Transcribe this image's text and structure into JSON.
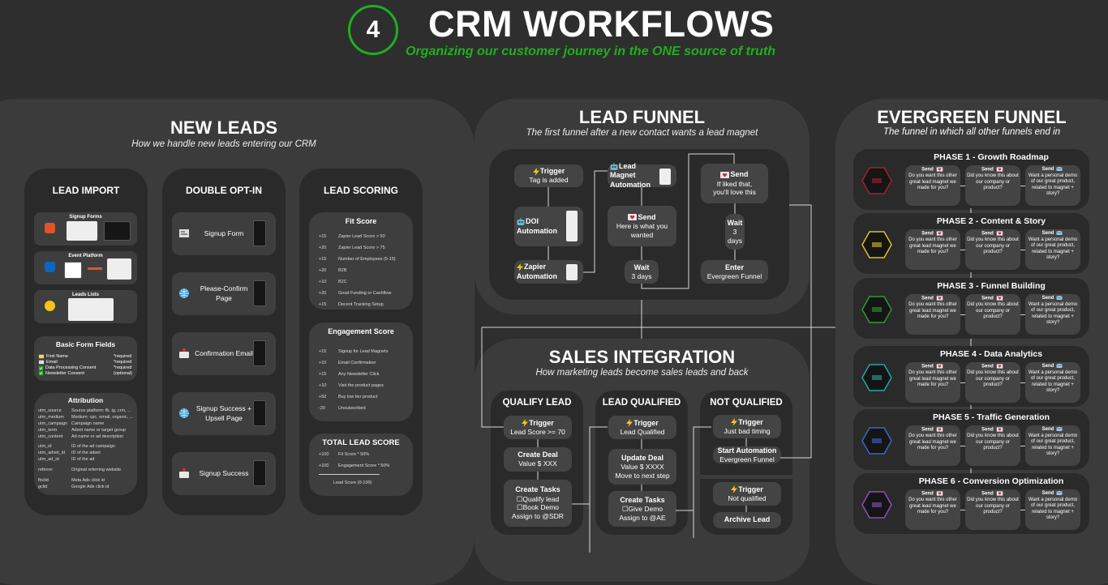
{
  "header": {
    "number": "4",
    "title": "CRM WORKFLOWS",
    "subtitle": "Organizing our customer journey in the ONE source of truth"
  },
  "colors": {
    "accent_green": "#1fae1f",
    "background": "#2e2e2e",
    "panel": "#3b3b3b",
    "column": "#2a2a2a",
    "card": "#444444",
    "trigger_yellow": "#f5c518"
  },
  "new_leads": {
    "title": "NEW LEADS",
    "subtitle": "How we handle new leads entering our CRM",
    "lead_import": {
      "title": "LEAD IMPORT",
      "groups": [
        {
          "title": "Signup Forms",
          "icon": "form-app-icon"
        },
        {
          "title": "Event Platform",
          "icon": "linkedin-icon"
        },
        {
          "title": "Leads Lists",
          "icon": "apollo-icon"
        }
      ],
      "basic_form_fields": {
        "title": "Basic Form Fields",
        "fields": [
          {
            "icon": "card-icon",
            "label": "First Name",
            "req": "*required"
          },
          {
            "icon": "mail-icon",
            "label": "Email",
            "req": "*required"
          },
          {
            "icon": "check-icon",
            "label": "Data Processing Consent",
            "req": "*required"
          },
          {
            "icon": "check-icon",
            "label": "Newsletter Consent",
            "req": "(optional)"
          }
        ]
      },
      "attribution": {
        "title": "Attribution",
        "rows": [
          [
            "utm_source",
            "Source platform: fb, ig, crm, ..."
          ],
          [
            "utm_medium",
            "Medium: cpc, email, organic, ..."
          ],
          [
            "utm_campaign",
            "Campaign name"
          ],
          [
            "utm_term",
            "Adset name or target group"
          ],
          [
            "utm_content",
            "Ad name or ad description"
          ],
          [
            "utm_id",
            "ID of the ad campaign"
          ],
          [
            "utm_adset_id",
            "ID of the adset"
          ],
          [
            "utm_ad_id",
            "ID of the ad"
          ],
          [
            "referrer",
            "Original referring website"
          ],
          [
            "fbclid",
            "Meta Ads click id"
          ],
          [
            "gclid",
            "Google Ads click id"
          ]
        ]
      }
    },
    "double_opt_in": {
      "title": "DOUBLE OPT-IN",
      "steps": [
        {
          "icon": "form-icon",
          "label": "Signup Form"
        },
        {
          "icon": "globe-icon",
          "label": "Please-Confirm Page"
        },
        {
          "icon": "mailbox-icon",
          "label": "Confirmation Email"
        },
        {
          "icon": "globe-icon",
          "label": "Signup Success + Upsell Page"
        },
        {
          "icon": "mailbox-icon",
          "label": "Signup Success"
        }
      ]
    },
    "lead_scoring": {
      "title": "LEAD SCORING",
      "fit": {
        "title": "Fit Score",
        "rows": [
          [
            "+15",
            "Zapier Lead Score > 50"
          ],
          [
            "+25",
            "Zapier Lead Score > 75"
          ],
          [
            "+15",
            "Number of Employees (5-15)"
          ],
          [
            "+20",
            "B2B"
          ],
          [
            "+10",
            "B2C"
          ],
          [
            "+20",
            "Good Funding or Cashflow"
          ],
          [
            "+15",
            "Decent Tracking Setup"
          ]
        ]
      },
      "engagement": {
        "title": "Engagement Score",
        "rows": [
          [
            "+15",
            "Signup for Lead Magnets"
          ],
          [
            "+10",
            "Email Confirmation"
          ],
          [
            "+15",
            "Any Newsletter Click"
          ],
          [
            "+10",
            "Visit the product pages"
          ],
          [
            "+50",
            "Buy low tier product"
          ],
          [
            "-20",
            "Unsubscribed"
          ]
        ]
      },
      "total": {
        "title": "TOTAL LEAD SCORE",
        "rows": [
          [
            "+100",
            "Fit Score * 50%"
          ],
          [
            "+100",
            "Engagement Score * 50%"
          ]
        ],
        "result": "Lead Score (0-100)"
      }
    }
  },
  "lead_funnel": {
    "title": "LEAD FUNNEL",
    "subtitle": "The first funnel after a new contact wants a lead magnet",
    "cards": [
      {
        "icon": "lightning-icon",
        "head": "Trigger",
        "body": [
          "Tag is added"
        ]
      },
      {
        "icon": "robot-icon",
        "head": "DOI Automation",
        "body": []
      },
      {
        "icon": "lightning-icon",
        "head": "Zapier Automation",
        "body": []
      },
      {
        "icon": "robot-icon",
        "head": "Lead Magnet Automation",
        "body": []
      },
      {
        "icon": "love-letter-icon",
        "head": "Send",
        "body": [
          "Here is what you wanted"
        ]
      },
      {
        "icon": "",
        "head": "Wait",
        "body": [
          "3 days"
        ]
      },
      {
        "icon": "love-letter-icon",
        "head": "Send",
        "body": [
          "If liked that,",
          "you'll love this"
        ]
      },
      {
        "icon": "",
        "head": "Wait",
        "body": [
          "3",
          "days"
        ]
      },
      {
        "icon": "",
        "head": "Enter",
        "body": [
          "Evergreen Funnel"
        ]
      }
    ]
  },
  "sales_integration": {
    "title": "SALES INTEGRATION",
    "subtitle": "How marketing leads become sales leads and back",
    "columns": [
      {
        "title": "QUALIFY LEAD",
        "cards": [
          {
            "icon": "lightning-icon",
            "head": "Trigger",
            "body": [
              "Lead Score >= 70"
            ]
          },
          {
            "icon": "",
            "head": "Create Deal",
            "body": [
              "Value $ XXX"
            ]
          },
          {
            "icon": "",
            "head": "Create Tasks",
            "body": [
              "☐Qualify lead",
              "☐Book Demo",
              "Assign to @SDR"
            ]
          }
        ]
      },
      {
        "title": "LEAD QUALIFIED",
        "cards": [
          {
            "icon": "lightning-icon",
            "head": "Trigger",
            "body": [
              "Lead Qualified"
            ]
          },
          {
            "icon": "",
            "head": "Update Deal",
            "body": [
              "Value $ XXXX",
              "Move to next step"
            ]
          },
          {
            "icon": "",
            "head": "Create Tasks",
            "body": [
              "☐Give Demo",
              "Assign to @AE"
            ]
          }
        ]
      },
      {
        "title": "NOT QUALIFIED",
        "cards": [
          {
            "icon": "lightning-icon",
            "head": "Trigger",
            "body": [
              "Just bad timing"
            ]
          },
          {
            "icon": "",
            "head": "Start Automation",
            "body": [
              "Evergreen Funnel"
            ]
          },
          {
            "icon": "lightning-icon",
            "head": "Trigger",
            "body": [
              "Not qualified"
            ]
          },
          {
            "icon": "",
            "head": "Archive Lead",
            "body": []
          }
        ]
      }
    ]
  },
  "evergreen": {
    "title": "EVERGREEN FUNNEL",
    "subtitle": "The funnel in which all other funnels end in",
    "send_label": "Send",
    "messages": [
      "Do you want this other great lead magnet we made for you?",
      "Did you know this about our company or product?",
      "Want a personal demo of our great product, related to magnet + story?"
    ],
    "phases": [
      {
        "title": "PHASE 1 - Growth Roadmap",
        "color": "#a3202e"
      },
      {
        "title": "PHASE 2 - Content & Story",
        "color": "#d6c41f"
      },
      {
        "title": "PHASE 3 - Funnel Building",
        "color": "#2c9a3c"
      },
      {
        "title": "PHASE 4 - Data Analytics",
        "color": "#2aa4a4"
      },
      {
        "title": "PHASE 5 - Traffic Generation",
        "color": "#3a66c8"
      },
      {
        "title": "PHASE 6 - Conversion Optimization",
        "color": "#8a52b8"
      }
    ]
  }
}
